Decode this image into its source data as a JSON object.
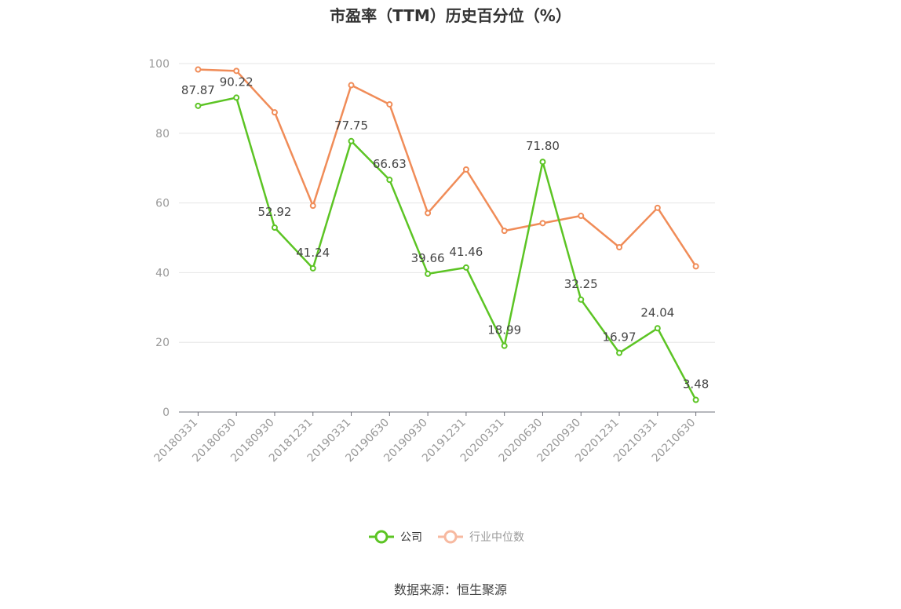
{
  "chart_data": {
    "type": "line",
    "title": "市盈率（TTM）历史百分位（%）",
    "categories": [
      "20180331",
      "20180630",
      "20180930",
      "20181231",
      "20190331",
      "20190630",
      "20190930",
      "20191231",
      "20200331",
      "20200630",
      "20200930",
      "20201231",
      "20210331",
      "20210630"
    ],
    "ylim": [
      0,
      100
    ],
    "yticks": [
      0,
      20,
      40,
      60,
      80,
      100
    ],
    "grid": true,
    "legend_position": "bottom-center",
    "series": [
      {
        "name": "公司",
        "color": "#5cc424",
        "show_labels": true,
        "values": [
          87.87,
          90.22,
          52.92,
          41.24,
          77.75,
          66.63,
          39.66,
          41.46,
          18.99,
          71.8,
          32.25,
          16.97,
          24.04,
          3.48
        ]
      },
      {
        "name": "行业中位数",
        "color": "#f08c58",
        "legend_color": "#f7b9a0",
        "show_labels": false,
        "values": [
          98.3,
          97.9,
          86.0,
          59.2,
          93.8,
          88.3,
          57.1,
          69.6,
          52.0,
          54.2,
          56.3,
          47.3,
          58.6,
          41.8
        ]
      }
    ]
  },
  "source": "数据来源：恒生聚源"
}
